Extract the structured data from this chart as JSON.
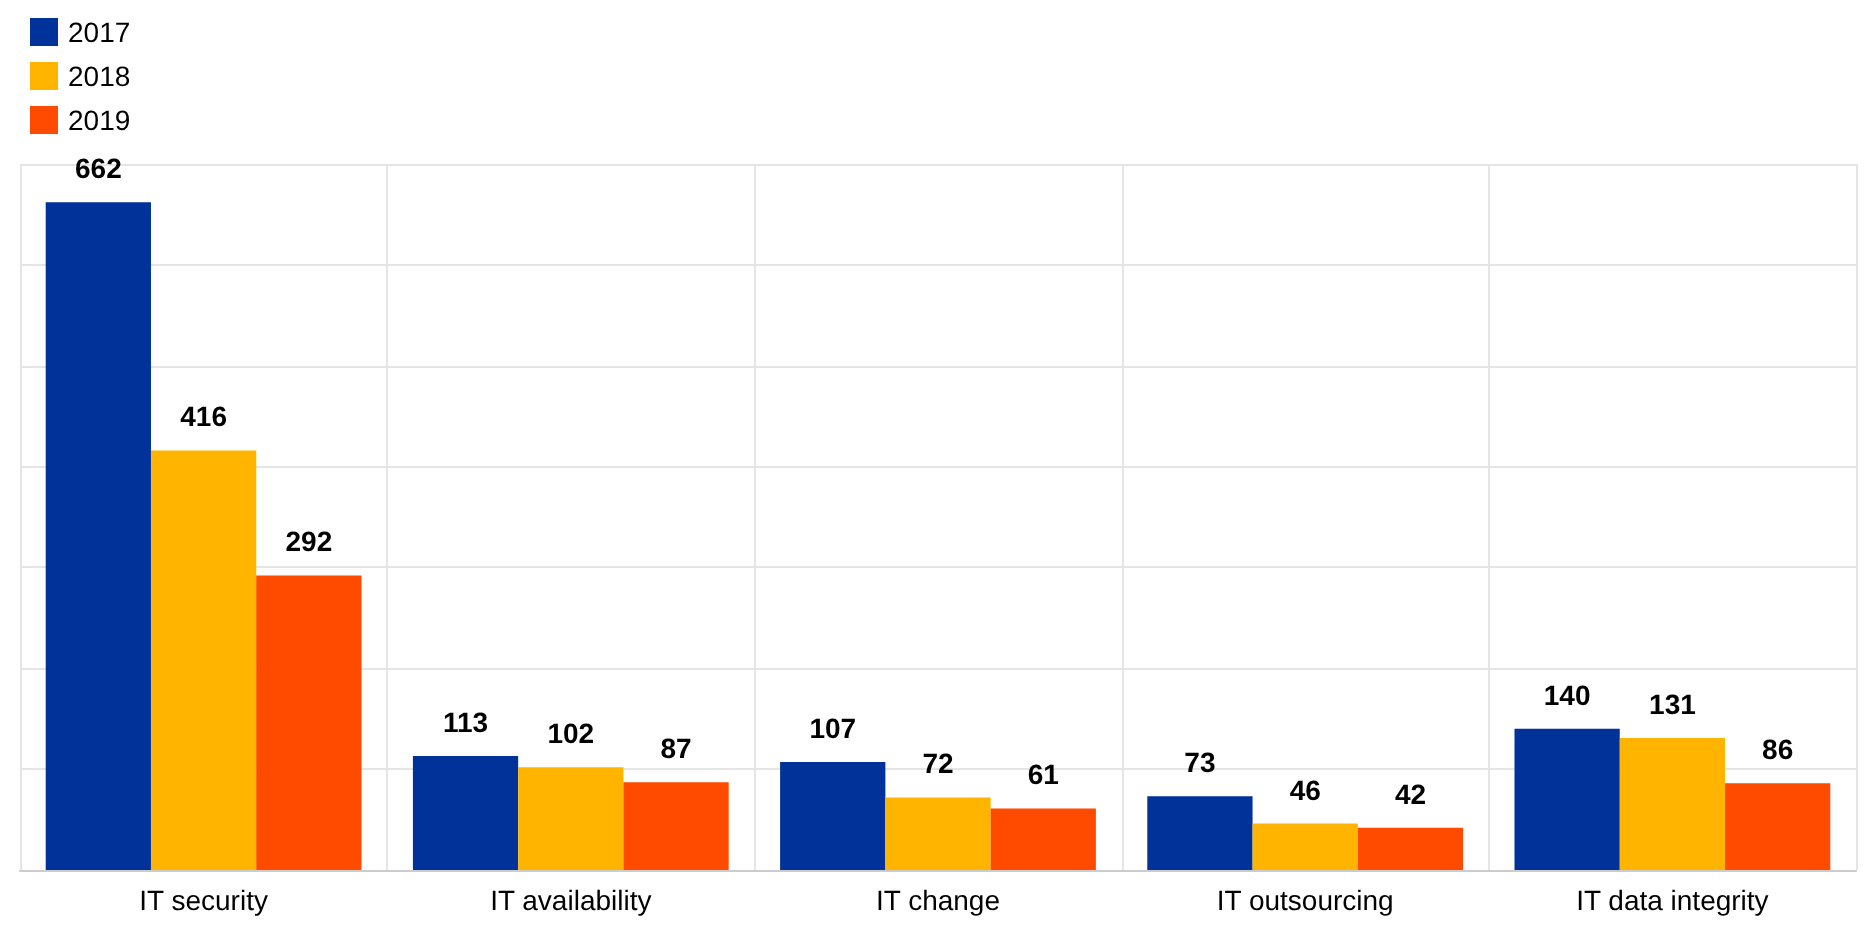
{
  "chart_data": {
    "type": "bar",
    "categories": [
      "IT security",
      "IT availability",
      "IT change",
      "IT outsourcing",
      "IT data integrity"
    ],
    "series": [
      {
        "name": "2017",
        "color": "#003299",
        "values": [
          662,
          113,
          107,
          73,
          140
        ]
      },
      {
        "name": "2018",
        "color": "#ffb400",
        "values": [
          416,
          102,
          72,
          46,
          131
        ]
      },
      {
        "name": "2019",
        "color": "#ff4b00",
        "values": [
          292,
          87,
          61,
          42,
          86
        ]
      }
    ],
    "ylim": [
      0,
      700
    ],
    "yticks": [
      {
        "value": 0,
        "label": null
      },
      {
        "value": 100,
        "label": null
      },
      {
        "value": 200,
        "label": null
      },
      {
        "value": 300,
        "label": null
      },
      {
        "value": 400,
        "label": null
      },
      {
        "value": 500,
        "label": null
      },
      {
        "value": 600,
        "label": null
      },
      {
        "value": 700,
        "label": null
      }
    ],
    "grid": true,
    "legend": "top left",
    "data_labels": true,
    "tick_labels": "x"
  }
}
